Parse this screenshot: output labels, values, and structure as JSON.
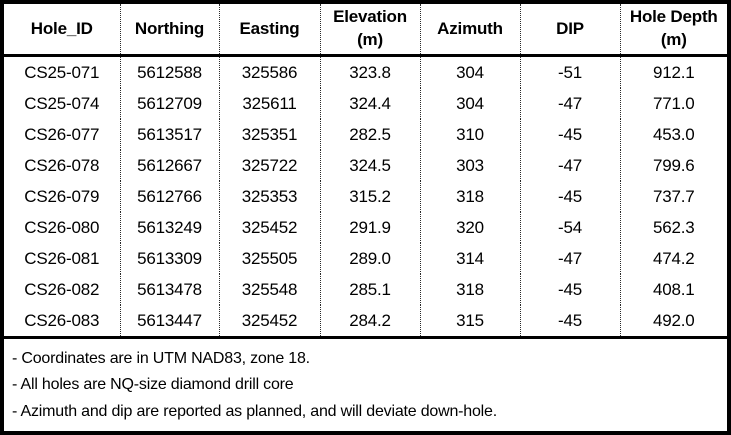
{
  "table": {
    "columns": [
      {
        "label": "Hole_ID",
        "unit": ""
      },
      {
        "label": "Northing",
        "unit": ""
      },
      {
        "label": "Easting",
        "unit": ""
      },
      {
        "label": "Elevation",
        "unit": "(m)"
      },
      {
        "label": "Azimuth",
        "unit": ""
      },
      {
        "label": "DIP",
        "unit": ""
      },
      {
        "label": "Hole Depth",
        "unit": "(m)"
      }
    ],
    "rows": [
      {
        "hole_id": "CS25-071",
        "northing": "5612588",
        "easting": "325586",
        "elevation": "323.8",
        "azimuth": "304",
        "dip": "-51",
        "hole_depth": "912.1"
      },
      {
        "hole_id": "CS25-074",
        "northing": "5612709",
        "easting": "325611",
        "elevation": "324.4",
        "azimuth": "304",
        "dip": "-47",
        "hole_depth": "771.0"
      },
      {
        "hole_id": "CS26-077",
        "northing": "5613517",
        "easting": "325351",
        "elevation": "282.5",
        "azimuth": "310",
        "dip": "-45",
        "hole_depth": "453.0"
      },
      {
        "hole_id": "CS26-078",
        "northing": "5612667",
        "easting": "325722",
        "elevation": "324.5",
        "azimuth": "303",
        "dip": "-47",
        "hole_depth": "799.6"
      },
      {
        "hole_id": "CS26-079",
        "northing": "5612766",
        "easting": "325353",
        "elevation": "315.2",
        "azimuth": "318",
        "dip": "-45",
        "hole_depth": "737.7"
      },
      {
        "hole_id": "CS26-080",
        "northing": "5613249",
        "easting": "325452",
        "elevation": "291.9",
        "azimuth": "320",
        "dip": "-54",
        "hole_depth": "562.3"
      },
      {
        "hole_id": "CS26-081",
        "northing": "5613309",
        "easting": "325505",
        "elevation": "289.0",
        "azimuth": "314",
        "dip": "-47",
        "hole_depth": "474.2"
      },
      {
        "hole_id": "CS26-082",
        "northing": "5613478",
        "easting": "325548",
        "elevation": "285.1",
        "azimuth": "318",
        "dip": "-45",
        "hole_depth": "408.1"
      },
      {
        "hole_id": "CS26-083",
        "northing": "5613447",
        "easting": "325452",
        "elevation": "284.2",
        "azimuth": "315",
        "dip": "-45",
        "hole_depth": "492.0"
      }
    ]
  },
  "notes": [
    "- Coordinates are in UTM NAD83, zone 18.",
    "- All holes are NQ-size diamond drill core",
    "- Azimuth and dip are reported as planned, and will deviate down-hole."
  ],
  "colors": {
    "border": "#000000",
    "text": "#000000",
    "background": "#ffffff"
  }
}
